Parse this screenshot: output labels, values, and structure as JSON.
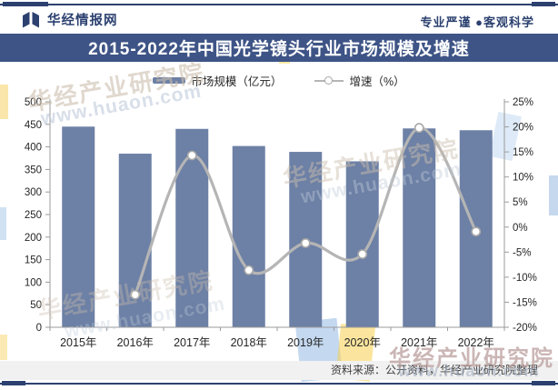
{
  "header": {
    "brand": "华经情报网",
    "slogan": "专业严谨 ●客观科学"
  },
  "title_bar": {
    "title": "2015-2022年中国光学镜头行业市场规模及增速"
  },
  "legend": {
    "items": [
      {
        "label": "市场规模（亿元）",
        "swatch": "bar"
      },
      {
        "label": "增速（%）",
        "swatch": "line-marker"
      }
    ]
  },
  "footer": {
    "source": "资料来源：公开资料，华经产业研究院整理"
  },
  "watermarks": {
    "org": "华经产业研究院",
    "site": "www.huaon.com"
  },
  "colors": {
    "navy": "#2c4170",
    "titlebar_bg": "#3e5486",
    "bar": "#6d80a5",
    "line": "#b5b5b5",
    "marker_fill": "#ffffff",
    "marker_stroke": "#a8a8a8",
    "axis": "#9b9b9b",
    "tick_text": "#262626",
    "footer_bg": "#f1f1f1"
  },
  "chart_data": {
    "type": "bar",
    "categories": [
      "2015年",
      "2016年",
      "2017年",
      "2018年",
      "2019年",
      "2020年",
      "2021年",
      "2022年"
    ],
    "series": [
      {
        "name": "市场规模（亿元）",
        "type": "bar",
        "axis": "left",
        "values": [
          445,
          385,
          440,
          402,
          389,
          368,
          441,
          437
        ]
      },
      {
        "name": "增速（%）",
        "type": "line",
        "axis": "right",
        "values": [
          null,
          -13.5,
          14.3,
          -8.6,
          -3.2,
          -5.4,
          19.8,
          -0.9
        ]
      }
    ],
    "left_axis": {
      "min": 0,
      "max": 500,
      "step": 50,
      "tick_labels": [
        "500",
        "450",
        "400",
        "350",
        "300",
        "250",
        "200",
        "150",
        "100",
        "50",
        "0"
      ]
    },
    "right_axis": {
      "min": -20,
      "max": 25,
      "step": 5,
      "tick_labels": [
        "25%",
        "20%",
        "15%",
        "10%",
        "5%",
        "0%",
        "-5%",
        "-10%",
        "-15%",
        "-20%"
      ]
    },
    "grid": false,
    "legend_position": "top",
    "title": "2015-2022年中国光学镜头行业市场规模及增速"
  }
}
